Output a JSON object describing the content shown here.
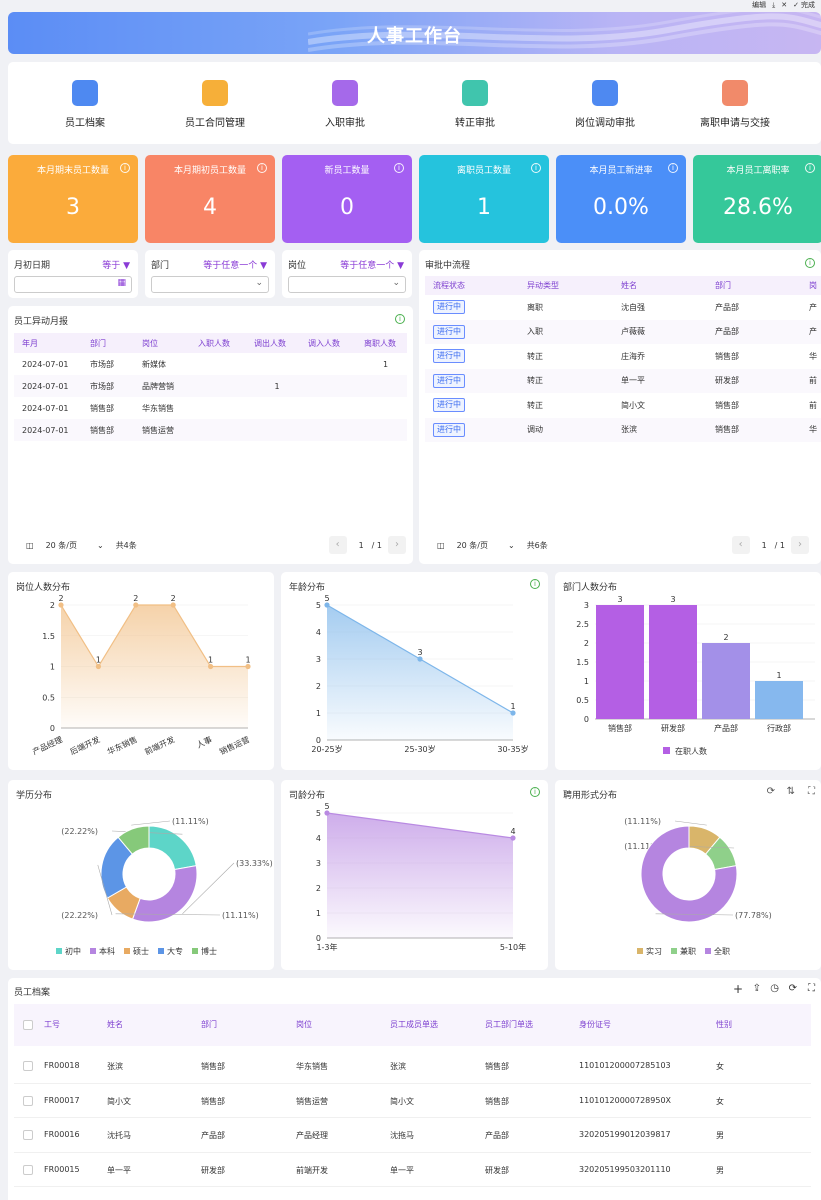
{
  "toolbar": {
    "edit": "编辑",
    "done": "完成"
  },
  "banner": {
    "title": "人事工作台"
  },
  "nav": [
    {
      "label": "员工档案",
      "icon": "employee-file-icon",
      "color": "#3b7cf0"
    },
    {
      "label": "员工合同管理",
      "icon": "contract-icon",
      "color": "#f5a623"
    },
    {
      "label": "入职审批",
      "icon": "onboarding-shield-icon",
      "color": "#9b59e8"
    },
    {
      "label": "转正审批",
      "icon": "bookmark-icon",
      "color": "#2bbfa4"
    },
    {
      "label": "岗位调动审批",
      "icon": "document-icon",
      "color": "#3b7cf0"
    },
    {
      "label": "离职申请与交接",
      "icon": "resign-icon",
      "color": "#f07d5a"
    }
  ],
  "stats": [
    {
      "label": "本月期末员工数量",
      "value": "3",
      "color": "#fbab3b"
    },
    {
      "label": "本月期初员工数量",
      "value": "4",
      "color": "#f88566"
    },
    {
      "label": "新员工数量",
      "value": "0",
      "color": "#a45ff2"
    },
    {
      "label": "离职员工数量",
      "value": "1",
      "color": "#25c3dd"
    },
    {
      "label": "本月员工新进率",
      "value": "0.0%",
      "color": "#4b8ff8"
    },
    {
      "label": "本月员工离职率",
      "value": "28.6%",
      "color": "#35c89a"
    }
  ],
  "filters": {
    "date": {
      "label": "月初日期",
      "op": "等于 ▼"
    },
    "dept": {
      "label": "部门",
      "op": "等于任意一个 ▼"
    },
    "post": {
      "label": "岗位",
      "op": "等于任意一个 ▼"
    }
  },
  "monthly": {
    "title": "员工异动月报",
    "headers": [
      "年月",
      "部门",
      "岗位",
      "入职人数",
      "调出人数",
      "调入人数",
      "离职人数"
    ],
    "rows": [
      [
        "2024-07-01",
        "市场部",
        "新媒体",
        "",
        "",
        "",
        "1"
      ],
      [
        "2024-07-01",
        "市场部",
        "品牌营销",
        "",
        "1",
        "",
        ""
      ],
      [
        "2024-07-01",
        "销售部",
        "华东销售",
        "",
        "",
        "",
        ""
      ],
      [
        "2024-07-01",
        "销售部",
        "销售运营",
        "",
        "",
        "",
        ""
      ]
    ],
    "page_size": "20 条/页",
    "total": "共4条",
    "page": "1",
    "pages": "/ 1"
  },
  "approval": {
    "title": "审批中流程",
    "headers": [
      "流程状态",
      "异动类型",
      "姓名",
      "部门",
      "岗"
    ],
    "rows": [
      [
        "进行中",
        "离职",
        "沈自强",
        "产品部",
        "产"
      ],
      [
        "进行中",
        "入职",
        "卢薇薇",
        "产品部",
        "产"
      ],
      [
        "进行中",
        "转正",
        "庄海乔",
        "销售部",
        "华"
      ],
      [
        "进行中",
        "转正",
        "单一平",
        "研发部",
        "前"
      ],
      [
        "进行中",
        "转正",
        "简小文",
        "销售部",
        "前"
      ],
      [
        "进行中",
        "调动",
        "张滨",
        "销售部",
        "华"
      ]
    ],
    "page_size": "20 条/页",
    "total": "共6条",
    "page": "1",
    "pages": "/ 1"
  },
  "chart_data": [
    {
      "id": "post",
      "type": "area",
      "title": "岗位人数分布",
      "categories": [
        "产品经理",
        "后端开发",
        "华东销售",
        "前端开发",
        "人事",
        "销售运营"
      ],
      "values": [
        2,
        1,
        2,
        2,
        1,
        1
      ],
      "ylim": [
        0,
        2
      ],
      "yticks": [
        "0",
        "0.5",
        "1",
        "1.5",
        "2"
      ]
    },
    {
      "id": "age",
      "type": "area",
      "title": "年龄分布",
      "categories": [
        "20-25岁",
        "25-30岁",
        "30-35岁"
      ],
      "values": [
        5,
        3,
        1
      ],
      "ylim": [
        0,
        5
      ],
      "yticks": [
        "0",
        "1",
        "2",
        "3",
        "4",
        "5"
      ]
    },
    {
      "id": "dept",
      "type": "bar",
      "title": "部门人数分布",
      "categories": [
        "销售部",
        "研发部",
        "产品部",
        "行政部"
      ],
      "values": [
        3,
        3,
        2,
        1
      ],
      "ylim": [
        0,
        3
      ],
      "yticks": [
        "0",
        "0.5",
        "1",
        "1.5",
        "2",
        "2.5",
        "3"
      ],
      "legend": "在职人数"
    },
    {
      "id": "edu",
      "type": "pie",
      "title": "学历分布",
      "slices": [
        {
          "name": "初中",
          "pct": "(22.22%)",
          "value": 22.22,
          "color": "#5dd5c8"
        },
        {
          "name": "本科",
          "pct": "(33.33%)",
          "value": 33.33,
          "color": "#b585e0"
        },
        {
          "name": "硕士",
          "pct": "(11.11%)",
          "value": 11.11,
          "color": "#e8aa62"
        },
        {
          "name": "大专",
          "pct": "(22.22%)",
          "value": 22.22,
          "color": "#5c95e6"
        },
        {
          "name": "博士",
          "pct": "(11.11%)",
          "value": 11.11,
          "color": "#86c97a"
        }
      ]
    },
    {
      "id": "tenure",
      "type": "area",
      "title": "司龄分布",
      "categories": [
        "1-3年",
        "5-10年"
      ],
      "values": [
        5,
        4
      ],
      "ylim": [
        0,
        5
      ],
      "yticks": [
        "0",
        "1",
        "2",
        "3",
        "4",
        "5"
      ]
    },
    {
      "id": "hire",
      "type": "pie",
      "title": "聘用形式分布",
      "slices": [
        {
          "name": "实习",
          "pct": "(11.11%)",
          "value": 11.11,
          "color": "#d9b56a"
        },
        {
          "name": "兼职",
          "pct": "(11.11%)",
          "value": 11.11,
          "color": "#8fd08a"
        },
        {
          "name": "全职",
          "pct": "(77.78%)",
          "value": 77.78,
          "color": "#b585e0"
        }
      ]
    }
  ],
  "archive": {
    "title": "员工档案",
    "headers": [
      "工号",
      "姓名",
      "部门",
      "岗位",
      "员工成员单选",
      "员工部门单选",
      "身份证号",
      "性别"
    ],
    "rows": [
      [
        "FR00018",
        "张滨",
        "销售部",
        "华东销售",
        "张滨",
        "销售部",
        "110101200007285103",
        "女"
      ],
      [
        "FR00017",
        "简小文",
        "销售部",
        "销售运营",
        "简小文",
        "销售部",
        "110101200007289​50X",
        "女"
      ],
      [
        "FR00016",
        "沈托马",
        "产品部",
        "产品经理",
        "沈拖马",
        "产品部",
        "320205199012039817",
        "男"
      ],
      [
        "FR00015",
        "单一平",
        "研发部",
        "前端开发",
        "单一平",
        "研发部",
        "320205199503201110",
        "男"
      ]
    ]
  }
}
